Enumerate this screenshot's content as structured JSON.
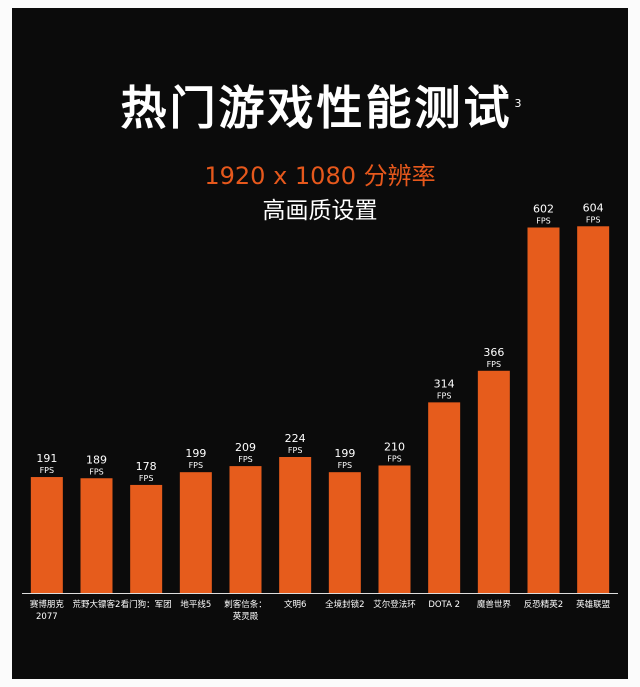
{
  "header": {
    "title": "热门游戏性能测试",
    "footnote_mark": "3",
    "resolution": "1920 x 1080 分辨率",
    "quality": "高画质设置"
  },
  "colors": {
    "bar": "#e65c1c",
    "accent": "#e6581c",
    "background": "#0b0b0b",
    "text": "#ffffff"
  },
  "chart_data": {
    "type": "bar",
    "unit": "FPS",
    "categories": [
      [
        "赛博朋克",
        "2077"
      ],
      [
        "荒野大镖客2"
      ],
      [
        "看门狗：军团"
      ],
      [
        "地平线5"
      ],
      [
        "刺客信条：",
        "英灵殿"
      ],
      [
        "文明6"
      ],
      [
        "全境封锁2"
      ],
      [
        "艾尔登法环"
      ],
      [
        "DOTA 2"
      ],
      [
        "魔兽世界"
      ],
      [
        "反恐精英2"
      ],
      [
        "英雄联盟"
      ]
    ],
    "values": [
      191,
      189,
      178,
      199,
      209,
      224,
      199,
      210,
      314,
      366,
      602,
      604
    ],
    "ylim": [
      0,
      700
    ],
    "grid": false,
    "legend": "none"
  }
}
